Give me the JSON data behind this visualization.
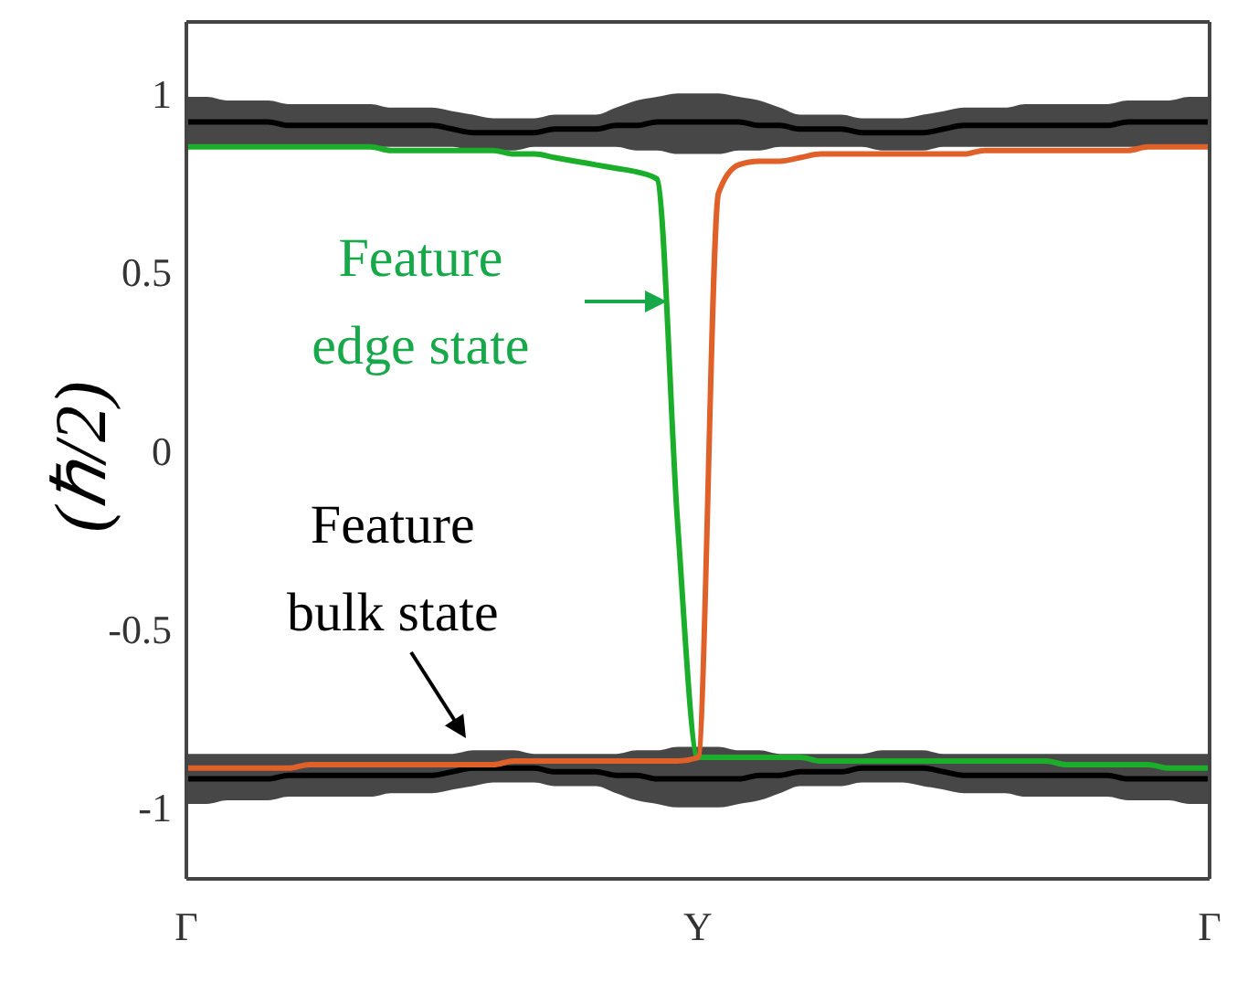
{
  "chart_data": {
    "type": "line",
    "ylabel": "(ℏ/2)",
    "categories": [
      "Γ",
      null,
      null,
      null,
      null,
      null,
      null,
      null,
      null,
      null,
      null,
      null,
      null,
      null,
      null,
      null,
      null,
      null,
      null,
      null,
      null,
      null,
      null,
      null,
      null,
      "Y",
      null,
      null,
      null,
      null,
      null,
      null,
      null,
      null,
      null,
      null,
      null,
      null,
      null,
      null,
      null,
      null,
      null,
      null,
      null,
      null,
      null,
      null,
      null,
      null,
      "Γ"
    ],
    "ylim": [
      -1.2,
      1.2
    ],
    "yticks": [
      -1,
      -0.5,
      0,
      0.5,
      1
    ],
    "series": [
      {
        "color": "#000000",
        "values": [
          0.92,
          0.92,
          0.92,
          0.92,
          0.92,
          0.91,
          0.91,
          0.91,
          0.91,
          0.91,
          0.91,
          0.91,
          0.91,
          0.9,
          0.89,
          0.89,
          0.89,
          0.89,
          0.9,
          0.9,
          0.9,
          0.91,
          0.91,
          0.92,
          0.92,
          0.92,
          0.92,
          0.92,
          0.91,
          0.91,
          0.9,
          0.9,
          0.9,
          0.89,
          0.89,
          0.89,
          0.89,
          0.9,
          0.91,
          0.91,
          0.91,
          0.91,
          0.91,
          0.91,
          0.91,
          0.91,
          0.92,
          0.92,
          0.92,
          0.92,
          0.92
        ],
        "lower": [
          0.85,
          0.85,
          0.85,
          0.85,
          0.85,
          0.85,
          0.85,
          0.85,
          0.85,
          0.85,
          0.85,
          0.85,
          0.85,
          0.85,
          0.84,
          0.84,
          0.84,
          0.85,
          0.85,
          0.85,
          0.85,
          0.85,
          0.84,
          0.84,
          0.83,
          0.83,
          0.83,
          0.84,
          0.84,
          0.85,
          0.85,
          0.85,
          0.85,
          0.85,
          0.84,
          0.84,
          0.84,
          0.85,
          0.85,
          0.85,
          0.85,
          0.85,
          0.85,
          0.85,
          0.85,
          0.85,
          0.85,
          0.85,
          0.85,
          0.85,
          0.85
        ],
        "upper": [
          0.99,
          0.99,
          0.98,
          0.98,
          0.98,
          0.97,
          0.97,
          0.97,
          0.97,
          0.97,
          0.96,
          0.96,
          0.96,
          0.95,
          0.94,
          0.93,
          0.93,
          0.93,
          0.94,
          0.94,
          0.94,
          0.96,
          0.98,
          0.99,
          1.0,
          1.0,
          1.0,
          0.99,
          0.98,
          0.96,
          0.94,
          0.94,
          0.94,
          0.93,
          0.93,
          0.93,
          0.94,
          0.95,
          0.96,
          0.96,
          0.96,
          0.97,
          0.97,
          0.97,
          0.97,
          0.97,
          0.98,
          0.98,
          0.98,
          0.99,
          0.99
        ]
      },
      {
        "color": "#000000",
        "values": [
          -0.92,
          -0.92,
          -0.92,
          -0.92,
          -0.92,
          -0.91,
          -0.91,
          -0.91,
          -0.91,
          -0.91,
          -0.91,
          -0.91,
          -0.91,
          -0.9,
          -0.89,
          -0.89,
          -0.89,
          -0.89,
          -0.9,
          -0.9,
          -0.9,
          -0.91,
          -0.91,
          -0.92,
          -0.92,
          -0.92,
          -0.92,
          -0.92,
          -0.91,
          -0.91,
          -0.9,
          -0.9,
          -0.9,
          -0.89,
          -0.89,
          -0.89,
          -0.89,
          -0.9,
          -0.91,
          -0.91,
          -0.91,
          -0.91,
          -0.91,
          -0.91,
          -0.91,
          -0.91,
          -0.92,
          -0.92,
          -0.92,
          -0.92,
          -0.92
        ],
        "lower": [
          -0.99,
          -0.99,
          -0.98,
          -0.98,
          -0.98,
          -0.97,
          -0.97,
          -0.97,
          -0.97,
          -0.97,
          -0.96,
          -0.96,
          -0.96,
          -0.95,
          -0.94,
          -0.93,
          -0.93,
          -0.93,
          -0.94,
          -0.94,
          -0.94,
          -0.96,
          -0.98,
          -0.99,
          -1.0,
          -1.0,
          -1.0,
          -0.99,
          -0.98,
          -0.96,
          -0.94,
          -0.94,
          -0.94,
          -0.93,
          -0.93,
          -0.93,
          -0.94,
          -0.95,
          -0.96,
          -0.96,
          -0.96,
          -0.97,
          -0.97,
          -0.97,
          -0.97,
          -0.97,
          -0.98,
          -0.98,
          -0.98,
          -0.99,
          -0.99
        ],
        "upper": [
          -0.85,
          -0.85,
          -0.85,
          -0.85,
          -0.85,
          -0.85,
          -0.85,
          -0.85,
          -0.85,
          -0.85,
          -0.85,
          -0.85,
          -0.85,
          -0.85,
          -0.84,
          -0.84,
          -0.84,
          -0.85,
          -0.85,
          -0.85,
          -0.85,
          -0.85,
          -0.84,
          -0.84,
          -0.83,
          -0.83,
          -0.83,
          -0.84,
          -0.84,
          -0.85,
          -0.85,
          -0.85,
          -0.85,
          -0.85,
          -0.84,
          -0.84,
          -0.84,
          -0.85,
          -0.85,
          -0.85,
          -0.85,
          -0.85,
          -0.85,
          -0.85,
          -0.85,
          -0.85,
          -0.85,
          -0.85,
          -0.85,
          -0.85,
          -0.85
        ]
      },
      {
        "color": "#1aae2a",
        "values": [
          0.85,
          0.85,
          0.85,
          0.85,
          0.85,
          0.85,
          0.85,
          0.85,
          0.85,
          0.85,
          0.84,
          0.84,
          0.84,
          0.84,
          0.84,
          0.84,
          0.83,
          0.83,
          0.82,
          0.81,
          0.8,
          0.79,
          0.78,
          0.76,
          -0.2,
          -0.86,
          -0.86,
          -0.86,
          -0.86,
          -0.86,
          -0.86,
          -0.87,
          -0.87,
          -0.87,
          -0.87,
          -0.87,
          -0.87,
          -0.87,
          -0.87,
          -0.87,
          -0.87,
          -0.87,
          -0.87,
          -0.88,
          -0.88,
          -0.88,
          -0.88,
          -0.88,
          -0.89,
          -0.89,
          -0.89
        ]
      },
      {
        "color": "#e0602a",
        "values": [
          -0.89,
          -0.89,
          -0.89,
          -0.89,
          -0.89,
          -0.89,
          -0.88,
          -0.88,
          -0.88,
          -0.88,
          -0.88,
          -0.88,
          -0.88,
          -0.88,
          -0.88,
          -0.88,
          -0.87,
          -0.87,
          -0.87,
          -0.87,
          -0.87,
          -0.87,
          -0.87,
          -0.87,
          -0.87,
          -0.86,
          0.72,
          0.8,
          0.81,
          0.81,
          0.82,
          0.83,
          0.83,
          0.83,
          0.83,
          0.83,
          0.83,
          0.83,
          0.83,
          0.84,
          0.84,
          0.84,
          0.84,
          0.84,
          0.84,
          0.84,
          0.84,
          0.85,
          0.85,
          0.85,
          0.85
        ]
      }
    ],
    "annotations": [
      "Feature edge state",
      "Feature bulk state"
    ]
  }
}
